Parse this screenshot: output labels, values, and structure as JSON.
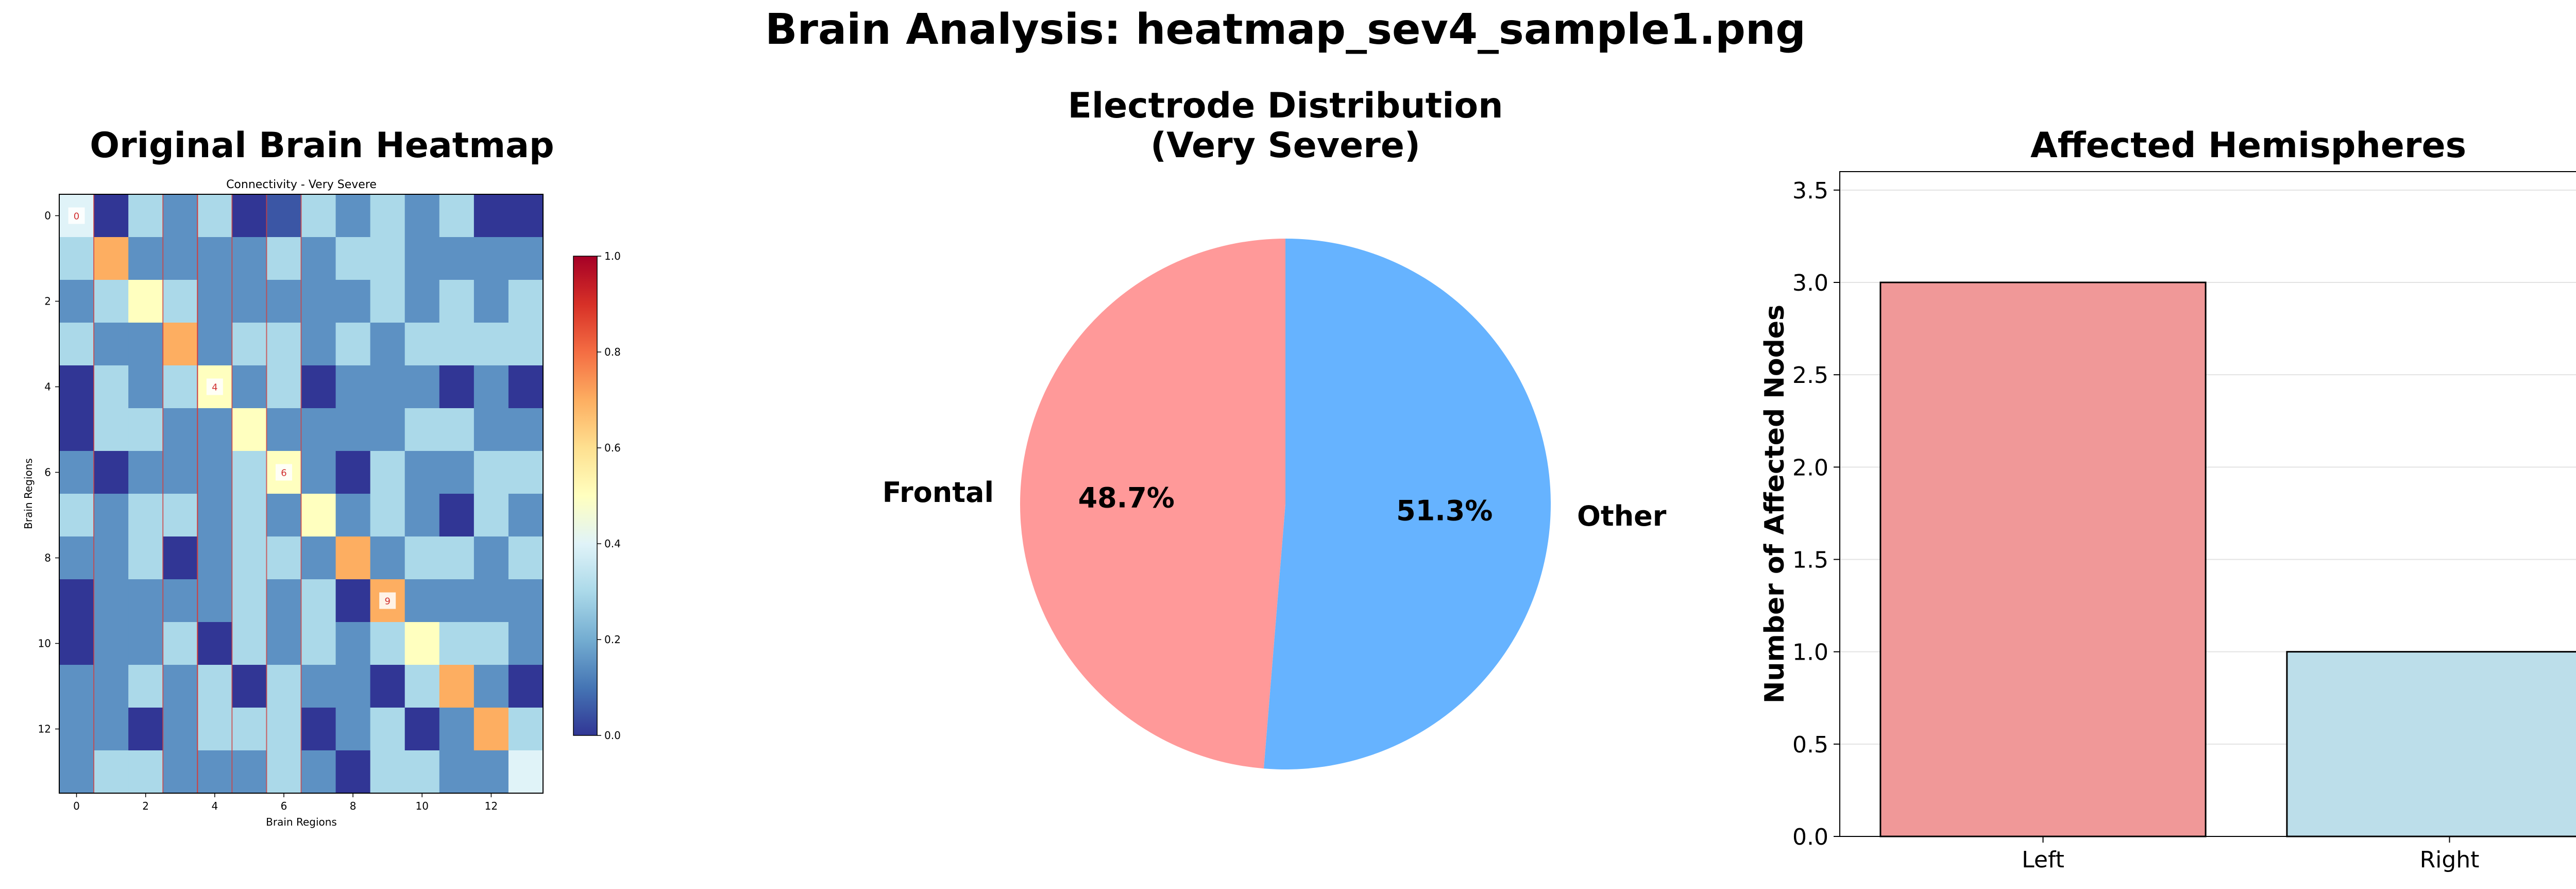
{
  "suptitle": "Brain Analysis: heatmap_sev4_sample1.png",
  "chart_data": [
    {
      "type": "heatmap",
      "title": "Original Brain Heatmap",
      "inner_title": "Connectivity - Very Severe",
      "xlabel": "Brain Regions",
      "ylabel": "Brain Regions",
      "x_ticks": [
        "0",
        "2",
        "4",
        "6",
        "8",
        "10",
        "12"
      ],
      "y_ticks": [
        "0",
        "2",
        "4",
        "6",
        "8",
        "10",
        "12"
      ],
      "colorbar": {
        "range": [
          0,
          1
        ],
        "ticks": [
          "0.0",
          "0.2",
          "0.4",
          "0.6",
          "0.8",
          "1.0"
        ],
        "colormap": "RdYlBu_r"
      },
      "highlighted_columns": [
        0,
        3,
        4,
        6
      ],
      "annotations": [
        {
          "row": 0,
          "col": 0,
          "text": "0"
        },
        {
          "row": 4,
          "col": 4,
          "text": "4"
        },
        {
          "row": 6,
          "col": 6,
          "text": "6"
        },
        {
          "row": 9,
          "col": 9,
          "text": "9"
        }
      ],
      "matrix": [
        [
          0.4,
          0.0,
          0.3,
          0.15,
          0.3,
          0.0,
          0.05,
          0.3,
          0.15,
          0.3,
          0.15,
          0.3,
          0.0,
          0.0
        ],
        [
          0.3,
          0.7,
          0.15,
          0.15,
          0.15,
          0.15,
          0.3,
          0.15,
          0.3,
          0.3,
          0.15,
          0.15,
          0.15,
          0.15
        ],
        [
          0.15,
          0.3,
          0.5,
          0.3,
          0.15,
          0.15,
          0.15,
          0.15,
          0.15,
          0.3,
          0.15,
          0.3,
          0.15,
          0.3
        ],
        [
          0.3,
          0.15,
          0.15,
          0.7,
          0.15,
          0.3,
          0.3,
          0.15,
          0.3,
          0.15,
          0.3,
          0.3,
          0.3,
          0.3
        ],
        [
          0.0,
          0.3,
          0.15,
          0.3,
          0.5,
          0.15,
          0.3,
          0.0,
          0.15,
          0.15,
          0.15,
          0.0,
          0.15,
          0.0
        ],
        [
          0.0,
          0.3,
          0.3,
          0.15,
          0.15,
          0.5,
          0.15,
          0.15,
          0.15,
          0.15,
          0.3,
          0.3,
          0.15,
          0.15
        ],
        [
          0.15,
          0.0,
          0.15,
          0.15,
          0.15,
          0.3,
          0.5,
          0.15,
          0.0,
          0.3,
          0.15,
          0.15,
          0.3,
          0.3
        ],
        [
          0.3,
          0.15,
          0.3,
          0.3,
          0.15,
          0.3,
          0.15,
          0.5,
          0.15,
          0.3,
          0.15,
          0.0,
          0.3,
          0.15
        ],
        [
          0.15,
          0.15,
          0.3,
          0.0,
          0.15,
          0.3,
          0.3,
          0.15,
          0.7,
          0.15,
          0.3,
          0.3,
          0.15,
          0.3
        ],
        [
          0.0,
          0.15,
          0.15,
          0.15,
          0.15,
          0.3,
          0.15,
          0.3,
          0.0,
          0.7,
          0.15,
          0.15,
          0.15,
          0.15
        ],
        [
          0.0,
          0.15,
          0.15,
          0.3,
          0.0,
          0.3,
          0.15,
          0.3,
          0.15,
          0.3,
          0.5,
          0.3,
          0.3,
          0.15
        ],
        [
          0.15,
          0.15,
          0.3,
          0.15,
          0.3,
          0.0,
          0.3,
          0.15,
          0.15,
          0.0,
          0.3,
          0.7,
          0.15,
          0.0
        ],
        [
          0.15,
          0.15,
          0.0,
          0.15,
          0.3,
          0.3,
          0.3,
          0.0,
          0.15,
          0.3,
          0.0,
          0.15,
          0.7,
          0.3
        ],
        [
          0.15,
          0.3,
          0.3,
          0.15,
          0.15,
          0.15,
          0.3,
          0.15,
          0.0,
          0.3,
          0.3,
          0.15,
          0.15,
          0.4
        ]
      ]
    },
    {
      "type": "pie",
      "title_lines": [
        "Electrode Distribution",
        "(Very Severe)"
      ],
      "slices": [
        {
          "label": "Frontal",
          "value": 48.7,
          "pct_label": "48.7%",
          "color": "#ff9999"
        },
        {
          "label": "Other",
          "value": 51.3,
          "pct_label": "51.3%",
          "color": "#66b3ff"
        }
      ]
    },
    {
      "type": "bar",
      "title": "Affected Hemispheres",
      "categories": [
        "Left",
        "Right"
      ],
      "values": [
        3,
        1
      ],
      "colors": [
        "#f09898",
        "#bcdeea"
      ],
      "ylabel": "Number of Affected Nodes",
      "ylim": [
        0,
        3.6
      ],
      "y_ticks": [
        "0.0",
        "0.5",
        "1.0",
        "1.5",
        "2.0",
        "2.5",
        "3.0",
        "3.5"
      ],
      "grid": true
    }
  ]
}
